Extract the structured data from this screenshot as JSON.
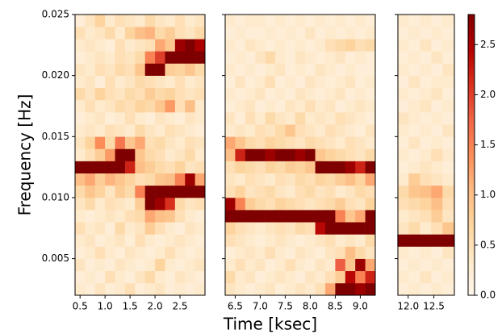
{
  "chart_data": {
    "type": "heatmap",
    "xlabel": "Time [ksec]",
    "ylabel": "Frequency [Hz]",
    "ylim": [
      0.002,
      0.025
    ],
    "yticks": [
      0.005,
      {
        "value": 0.01,
        "label": "0.010"
      },
      {
        "value": 0.015,
        "label": "0.015"
      },
      {
        "value": 0.02,
        "label": "0.020"
      },
      {
        "value": 0.025,
        "label": "0.025"
      }
    ],
    "clim": [
      0,
      2.8
    ],
    "cticks": [
      {
        "value": 0,
        "label": "0.0"
      },
      0.5,
      {
        "value": 1,
        "label": "1.0"
      },
      1.5,
      {
        "value": 2,
        "label": "2.0"
      },
      2.5
    ],
    "colors": [
      "#fff7ec",
      "#fee8c8",
      "#fdd49e",
      "#fdbb84",
      "#fc8d59",
      "#ef6548",
      "#d7301f",
      "#b30000",
      "#7f0000"
    ],
    "y": [
      0.0025,
      0.0035,
      0.0045,
      0.0055,
      0.0065,
      0.0075,
      0.0085,
      0.0095,
      0.0105,
      0.0115,
      0.0125,
      0.0135,
      0.0145,
      0.0155,
      0.0165,
      0.0175,
      0.0185,
      0.0195,
      0.0205,
      0.0215,
      0.0225,
      0.0235,
      0.0245
    ],
    "panels": [
      {
        "xlim": [
          0.4,
          3.0
        ],
        "xticks": [
          0.5,
          {
            "value": 1,
            "label": "1.0"
          },
          1.5,
          {
            "value": 2,
            "label": "2.0"
          },
          2.5
        ],
        "x": [
          0.5,
          0.7,
          0.9,
          1.1,
          1.3,
          1.5,
          1.7,
          1.9,
          2.1,
          2.3,
          2.5,
          2.7,
          2.9
        ],
        "values": [
          [
            0.3,
            0.2,
            0.4,
            0.2,
            0.3,
            0.5,
            0.2,
            0.3,
            0.4,
            0.2,
            0.3,
            0.2,
            0.3
          ],
          [
            0.2,
            0.3,
            0.2,
            0.5,
            0.3,
            0.2,
            0.4,
            0.6,
            0.3,
            0.2,
            0.4,
            0.3,
            0.2
          ],
          [
            0.4,
            0.2,
            0.3,
            0.2,
            0.4,
            0.3,
            0.2,
            0.3,
            0.7,
            0.3,
            0.2,
            0.3,
            0.4
          ],
          [
            0.2,
            0.3,
            0.5,
            0.3,
            0.2,
            0.4,
            0.3,
            0.2,
            0.3,
            0.5,
            0.3,
            0.2,
            0.3
          ],
          [
            0.3,
            0.4,
            0.2,
            0.3,
            0.4,
            0.2,
            0.5,
            0.3,
            0.2,
            0.3,
            0.4,
            0.3,
            0.2
          ],
          [
            0.5,
            0.3,
            0.4,
            0.2,
            0.6,
            0.3,
            0.4,
            0.8,
            0.5,
            0.3,
            0.2,
            0.4,
            0.3
          ],
          [
            0.3,
            0.2,
            0.3,
            0.4,
            0.3,
            0.5,
            0.6,
            1.2,
            1.0,
            0.9,
            0.5,
            0.3,
            0.2
          ],
          [
            0.4,
            0.6,
            0.3,
            0.5,
            0.4,
            0.3,
            0.8,
            2.8,
            2.6,
            2.1,
            0.6,
            0.4,
            0.5
          ],
          [
            0.6,
            0.9,
            0.7,
            0.4,
            0.8,
            0.6,
            1.5,
            2.8,
            2.8,
            2.8,
            2.8,
            2.8,
            2.8
          ],
          [
            1.0,
            1.2,
            0.8,
            1.1,
            0.9,
            0.7,
            0.5,
            0.6,
            0.9,
            1.0,
            1.5,
            2.6,
            1.2
          ],
          [
            2.8,
            2.8,
            2.8,
            2.8,
            2.8,
            2.2,
            1.0,
            0.8,
            0.6,
            0.5,
            0.7,
            0.4,
            0.5
          ],
          [
            0.3,
            0.5,
            0.8,
            1.3,
            2.8,
            2.8,
            0.9,
            0.6,
            0.5,
            0.3,
            0.4,
            0.6,
            0.3
          ],
          [
            0.4,
            0.7,
            1.4,
            0.6,
            1.6,
            0.9,
            1.2,
            0.5,
            0.6,
            0.4,
            0.3,
            0.5,
            0.4
          ],
          [
            0.3,
            0.4,
            0.3,
            0.5,
            0.4,
            0.3,
            0.6,
            0.4,
            0.3,
            0.5,
            0.4,
            0.3,
            0.2
          ],
          [
            0.2,
            0.3,
            0.4,
            0.2,
            0.3,
            0.5,
            0.3,
            0.2,
            0.4,
            0.3,
            0.2,
            0.4,
            0.3
          ],
          [
            0.3,
            0.5,
            0.3,
            0.4,
            0.6,
            0.5,
            0.7,
            0.6,
            0.9,
            1.3,
            0.5,
            1.0,
            0.3
          ],
          [
            0.6,
            0.4,
            0.7,
            0.5,
            0.4,
            0.6,
            0.5,
            0.8,
            0.6,
            0.7,
            0.5,
            0.4,
            0.5
          ],
          [
            0.3,
            0.4,
            0.2,
            0.5,
            0.3,
            0.4,
            0.6,
            0.5,
            0.4,
            0.3,
            0.5,
            0.3,
            0.4
          ],
          [
            0.4,
            0.3,
            0.5,
            0.4,
            0.6,
            0.5,
            0.9,
            2.8,
            2.8,
            0.8,
            0.7,
            0.9,
            0.6
          ],
          [
            0.2,
            0.3,
            0.4,
            0.3,
            0.5,
            0.4,
            0.6,
            1.5,
            2.0,
            2.8,
            2.8,
            2.8,
            2.8
          ],
          [
            0.3,
            0.4,
            0.3,
            0.2,
            0.5,
            0.3,
            0.4,
            0.5,
            1.2,
            0.9,
            2.6,
            2.8,
            2.5
          ],
          [
            0.5,
            0.3,
            0.4,
            0.6,
            0.3,
            0.7,
            1.0,
            1.1,
            0.6,
            0.8,
            0.5,
            0.4,
            0.6
          ],
          [
            0.2,
            0.4,
            0.7,
            0.3,
            0.5,
            0.4,
            0.3,
            0.6,
            0.4,
            0.3,
            0.5,
            0.3,
            0.4
          ]
        ]
      },
      {
        "xlim": [
          6.3,
          9.3
        ],
        "xticks": [
          6.5,
          {
            "value": 7,
            "label": "7.0"
          },
          7.5,
          {
            "value": 8,
            "label": "8.0"
          },
          8.5,
          {
            "value": 9,
            "label": "9.0"
          }
        ],
        "x": [
          6.4,
          6.6,
          6.8,
          7.0,
          7.2,
          7.4,
          7.6,
          7.8,
          8.0,
          8.2,
          8.4,
          8.6,
          8.8,
          9.0,
          9.2
        ],
        "values": [
          [
            0.4,
            0.3,
            0.2,
            0.3,
            0.4,
            0.2,
            0.3,
            0.4,
            0.3,
            0.5,
            1.2,
            2.8,
            2.8,
            2.6,
            2.8
          ],
          [
            0.6,
            0.3,
            0.4,
            0.2,
            0.3,
            0.4,
            0.3,
            0.2,
            0.4,
            0.3,
            0.5,
            0.8,
            2.4,
            1.5,
            2.2
          ],
          [
            0.3,
            0.5,
            0.3,
            0.4,
            0.2,
            0.3,
            0.5,
            0.3,
            0.2,
            0.4,
            0.3,
            1.8,
            0.9,
            2.6,
            1.2
          ],
          [
            0.2,
            0.3,
            0.4,
            0.3,
            0.5,
            0.3,
            0.2,
            0.4,
            0.3,
            0.2,
            0.4,
            0.5,
            1.0,
            0.6,
            0.4
          ],
          [
            0.5,
            0.4,
            0.3,
            0.2,
            0.3,
            0.4,
            0.3,
            0.2,
            0.3,
            0.4,
            0.5,
            0.3,
            0.4,
            0.3,
            0.6
          ],
          [
            0.7,
            0.5,
            0.4,
            0.3,
            0.4,
            0.5,
            0.4,
            0.6,
            0.5,
            2.4,
            2.8,
            2.8,
            2.8,
            2.8,
            2.8
          ],
          [
            2.8,
            2.8,
            2.8,
            2.8,
            2.8,
            2.8,
            2.8,
            2.8,
            2.8,
            2.8,
            2.8,
            1.5,
            0.9,
            1.2,
            2.8
          ],
          [
            2.6,
            1.5,
            0.8,
            0.6,
            0.5,
            0.7,
            0.6,
            0.5,
            0.4,
            0.5,
            0.6,
            0.8,
            0.5,
            0.4,
            0.7
          ],
          [
            0.5,
            0.7,
            0.4,
            0.5,
            0.6,
            0.4,
            0.3,
            0.5,
            0.6,
            0.4,
            0.5,
            0.3,
            0.4,
            0.6,
            0.5
          ],
          [
            0.4,
            0.3,
            0.5,
            0.4,
            0.3,
            0.5,
            0.4,
            0.6,
            0.5,
            0.7,
            0.6,
            0.8,
            1.0,
            0.7,
            1.2
          ],
          [
            0.5,
            0.7,
            0.6,
            0.5,
            0.7,
            0.6,
            0.8,
            0.7,
            0.9,
            2.8,
            2.8,
            2.8,
            2.6,
            2.2,
            2.8
          ],
          [
            1.0,
            2.2,
            2.8,
            2.8,
            2.6,
            2.8,
            2.8,
            2.6,
            2.8,
            0.9,
            0.7,
            0.6,
            0.5,
            0.4,
            0.6
          ],
          [
            1.2,
            0.9,
            0.6,
            0.5,
            0.7,
            0.6,
            0.5,
            0.4,
            0.6,
            0.5,
            0.4,
            0.3,
            0.5,
            0.4,
            0.3
          ],
          [
            0.3,
            0.4,
            0.3,
            0.5,
            0.4,
            0.6,
            0.9,
            0.5,
            0.4,
            0.3,
            0.5,
            0.4,
            0.3,
            0.2,
            0.4
          ],
          [
            0.4,
            0.2,
            0.5,
            0.3,
            0.6,
            0.4,
            0.3,
            0.6,
            0.3,
            0.4,
            0.3,
            0.5,
            0.4,
            0.3,
            0.2
          ],
          [
            0.2,
            0.3,
            0.4,
            0.2,
            0.3,
            0.2,
            0.4,
            0.3,
            0.5,
            0.3,
            0.4,
            0.2,
            0.3,
            0.4,
            0.3
          ],
          [
            0.3,
            0.2,
            0.3,
            0.4,
            0.2,
            0.3,
            0.2,
            0.4,
            0.3,
            0.2,
            0.3,
            0.4,
            0.2,
            0.3,
            0.2
          ],
          [
            0.2,
            0.4,
            0.2,
            0.3,
            0.5,
            0.2,
            0.3,
            0.2,
            0.4,
            0.3,
            0.2,
            0.3,
            0.4,
            0.2,
            0.3
          ],
          [
            0.3,
            0.2,
            0.3,
            0.2,
            0.3,
            0.4,
            0.2,
            0.3,
            0.2,
            0.4,
            0.3,
            0.2,
            0.3,
            0.2,
            0.2
          ],
          [
            0.2,
            0.3,
            0.2,
            0.4,
            0.6,
            0.3,
            0.2,
            0.4,
            0.3,
            0.2,
            0.3,
            0.4,
            0.2,
            0.3,
            0.2
          ],
          [
            0.3,
            0.2,
            0.4,
            0.3,
            0.2,
            0.3,
            0.2,
            0.3,
            0.2,
            0.3,
            0.5,
            0.6,
            0.7,
            0.5,
            0.6
          ],
          [
            0.2,
            0.3,
            0.2,
            0.2,
            0.3,
            0.2,
            0.3,
            0.2,
            0.4,
            0.2,
            0.3,
            0.2,
            0.3,
            0.2,
            0.3
          ],
          [
            0.3,
            0.2,
            0.3,
            0.3,
            0.2,
            0.3,
            0.2,
            0.3,
            0.2,
            0.3,
            0.2,
            0.3,
            0.2,
            0.3,
            0.2
          ]
        ]
      },
      {
        "xlim": [
          11.8,
          12.9
        ],
        "xticks": [
          {
            "value": 12,
            "label": "12.0"
          },
          12.5
        ],
        "x": [
          11.9,
          12.12,
          12.34,
          12.56,
          12.78
        ],
        "values": [
          [
            0.2,
            0.3,
            0.2,
            0.3,
            0.2
          ],
          [
            0.3,
            0.2,
            0.4,
            0.2,
            0.3
          ],
          [
            0.2,
            0.3,
            0.2,
            0.3,
            0.2
          ],
          [
            0.3,
            0.2,
            0.3,
            0.2,
            0.4
          ],
          [
            2.8,
            2.8,
            2.8,
            2.8,
            2.8
          ],
          [
            0.4,
            0.6,
            0.3,
            0.5,
            0.9
          ],
          [
            0.3,
            0.4,
            0.5,
            0.8,
            0.4
          ],
          [
            0.5,
            0.6,
            0.7,
            1.0,
            0.5
          ],
          [
            0.6,
            0.9,
            1.0,
            1.2,
            0.6
          ],
          [
            0.3,
            0.8,
            0.5,
            0.4,
            0.3
          ],
          [
            0.2,
            0.3,
            0.4,
            0.3,
            0.2
          ],
          [
            0.3,
            0.2,
            0.3,
            0.5,
            0.3
          ],
          [
            0.2,
            0.4,
            0.2,
            0.3,
            0.2
          ],
          [
            0.3,
            0.2,
            0.3,
            0.2,
            0.4
          ],
          [
            0.4,
            0.3,
            0.2,
            0.3,
            0.2
          ],
          [
            0.2,
            0.3,
            0.4,
            0.2,
            0.3
          ],
          [
            0.3,
            0.2,
            0.3,
            0.4,
            0.2
          ],
          [
            0.2,
            0.4,
            0.2,
            0.3,
            0.3
          ],
          [
            0.3,
            0.2,
            0.3,
            0.2,
            0.4
          ],
          [
            0.2,
            0.3,
            0.2,
            0.4,
            0.2
          ],
          [
            0.3,
            0.2,
            0.4,
            0.2,
            0.3
          ],
          [
            0.2,
            0.3,
            0.2,
            0.3,
            0.2
          ],
          [
            0.3,
            0.2,
            0.3,
            0.2,
            0.3
          ]
        ]
      }
    ]
  }
}
